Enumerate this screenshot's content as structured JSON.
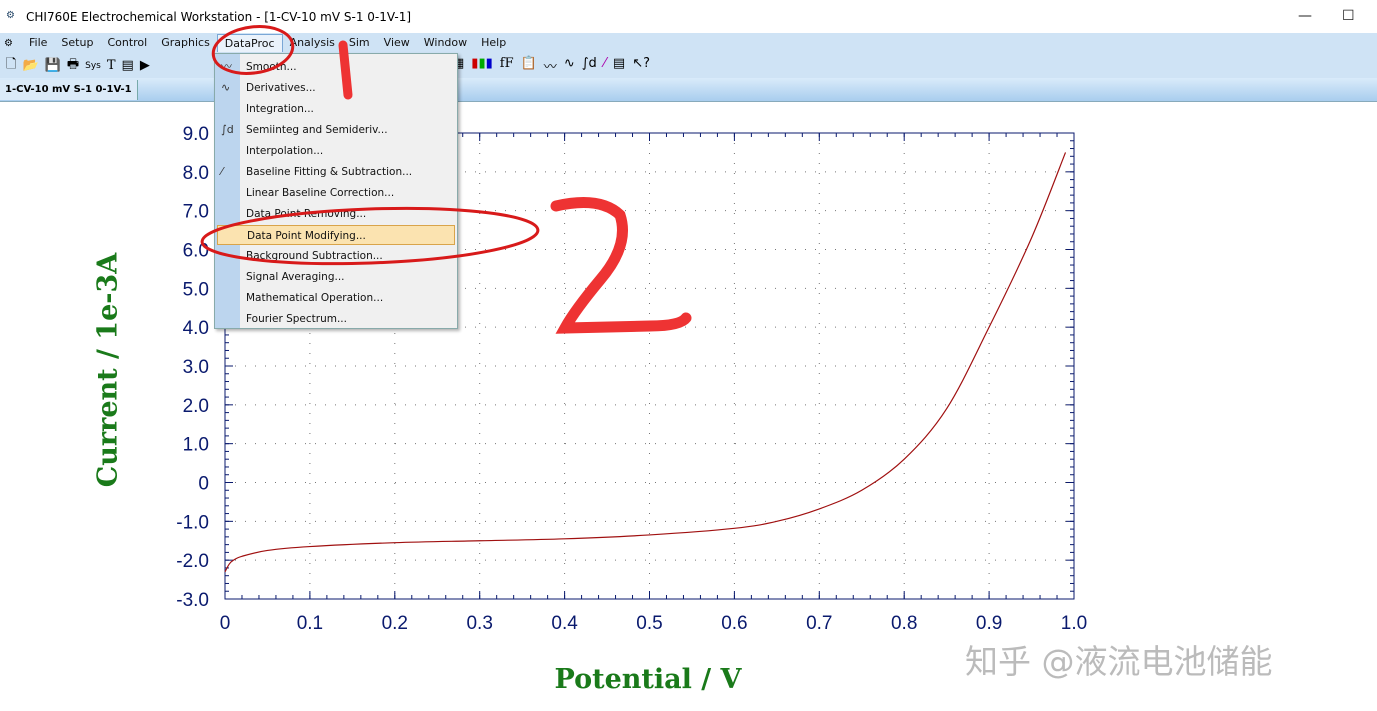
{
  "window": {
    "title": "CHI760E Electrochemical Workstation - [1-CV-10 mV S-1  0-1V-1]",
    "minimize": "—",
    "maximize": "☐"
  },
  "menubar": [
    "File",
    "Setup",
    "Control",
    "Graphics",
    "DataProc",
    "Analysis",
    "Sim",
    "View",
    "Window",
    "Help"
  ],
  "toolbar_icons": [
    "new-file",
    "open",
    "save",
    "print",
    "sys",
    "text",
    "info",
    "run",
    "stop",
    "graph",
    "color",
    "font",
    "clipboard",
    "smooth",
    "derivative",
    "semiinteg",
    "baseline",
    "table",
    "help"
  ],
  "tab": "1-CV-10 mV S-1  0-1V-1",
  "dataproc_menu": [
    {
      "label": "Smooth...",
      "icon": "smooth-icon"
    },
    {
      "label": "Derivatives...",
      "icon": "derivative-icon"
    },
    {
      "label": "Integration..."
    },
    {
      "label": "Semiinteg and Semideriv...",
      "icon": "semiinteg-icon"
    },
    {
      "label": "Interpolation..."
    },
    {
      "label": "Baseline Fitting & Subtraction...",
      "icon": "baseline-icon"
    },
    {
      "label": "Linear Baseline Correction..."
    },
    {
      "label": "Data Point Removing..."
    },
    {
      "label": "Data Point Modifying...",
      "highlighted": true
    },
    {
      "label": "Background Subtraction..."
    },
    {
      "label": "Signal Averaging..."
    },
    {
      "label": "Mathematical Operation..."
    },
    {
      "label": "Fourier Spectrum..."
    }
  ],
  "annotations": {
    "step1": "1",
    "step2": "2",
    "color": "#e0201c"
  },
  "watermark": "知乎 @液流电池储能",
  "chart_data": {
    "type": "line",
    "xlabel": "Potential / V",
    "ylabel": "Current / 1e-3A",
    "xlim": [
      0,
      1.0
    ],
    "ylim": [
      -3.0,
      9.0
    ],
    "xticks": [
      "0",
      "0.1",
      "0.2",
      "0.3",
      "0.4",
      "0.5",
      "0.6",
      "0.7",
      "0.8",
      "0.9",
      "1.0"
    ],
    "yticks": [
      "9.0",
      "8.0",
      "7.0",
      "6.0",
      "5.0",
      "4.0",
      "3.0",
      "2.0",
      "1.0",
      "0",
      "-1.0",
      "-2.0",
      "-3.0"
    ],
    "grid": true,
    "line_color": "#a01010",
    "axis_color": "#0a1a6e",
    "x": [
      0,
      0.005,
      0.01,
      0.02,
      0.05,
      0.1,
      0.2,
      0.3,
      0.4,
      0.5,
      0.6,
      0.65,
      0.7,
      0.75,
      0.8,
      0.85,
      0.9,
      0.95,
      0.99
    ],
    "y": [
      -2.3,
      -2.1,
      -2.0,
      -1.9,
      -1.75,
      -1.65,
      -1.55,
      -1.5,
      -1.45,
      -1.35,
      -1.18,
      -1.0,
      -0.68,
      -0.2,
      0.6,
      1.9,
      4.0,
      6.3,
      8.5
    ]
  }
}
